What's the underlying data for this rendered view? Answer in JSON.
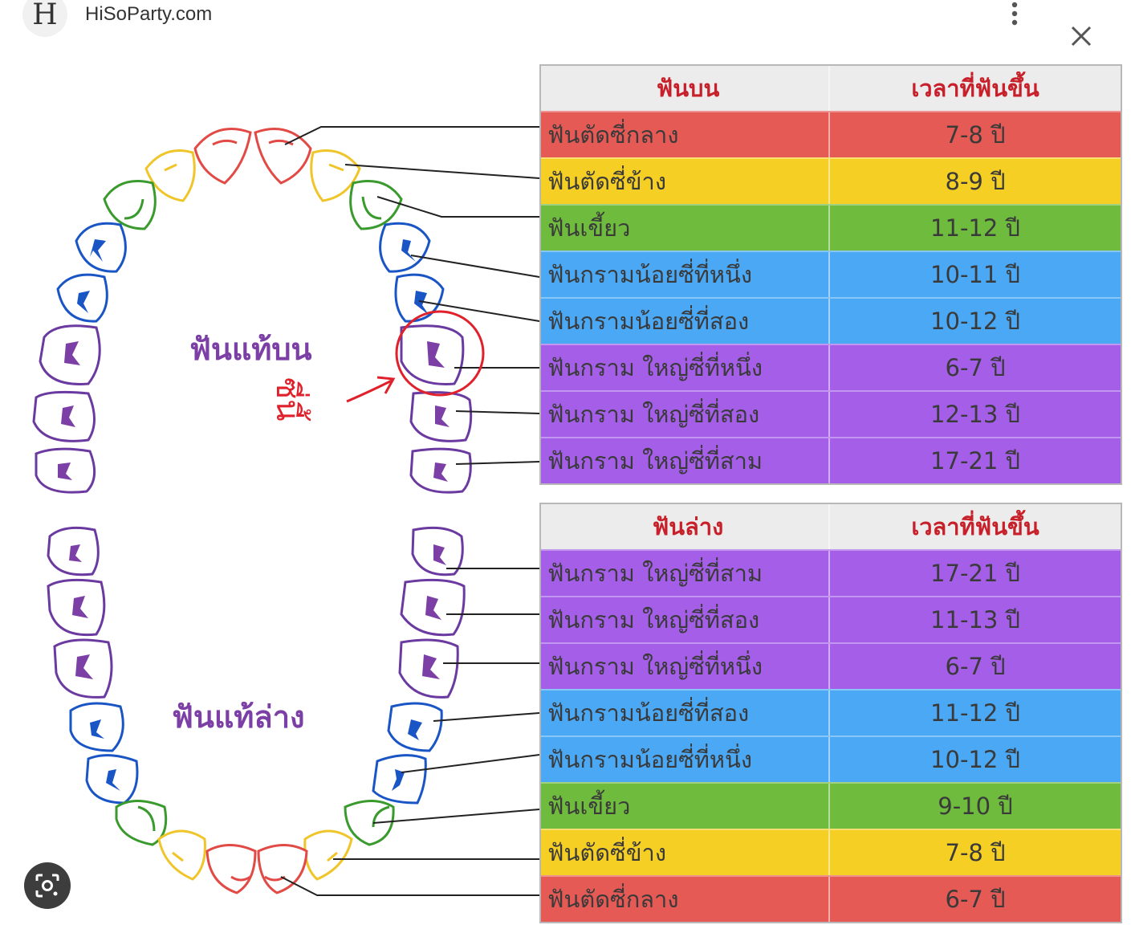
{
  "header": {
    "logo_letter": "H",
    "site_name": "HiSoParty.com"
  },
  "diagram": {
    "upper_label": "ฟันแท้บน",
    "lower_label": "ฟันแท้ล่าง",
    "annotation": "ซี่นี้",
    "colors": {
      "central_incisor": "#e65a55",
      "lateral_incisor": "#f6cf24",
      "canine": "#6fbb3d",
      "premolar": "#4aa8f5",
      "molar": "#a45ee8",
      "header": "#ececec",
      "header_text": "#c8202a",
      "annotation": "#e0202a"
    }
  },
  "upper_table": {
    "headers": [
      "ฟันบน",
      "เวลาที่ฟันขึ้น"
    ],
    "rows": [
      {
        "tooth": "ฟันตัดซี่กลาง",
        "age": "7-8 ปี",
        "color": "#e65a55"
      },
      {
        "tooth": "ฟันตัดซี่ข้าง",
        "age": "8-9 ปี",
        "color": "#f6cf24"
      },
      {
        "tooth": "ฟันเขี้ยว",
        "age": "11-12 ปี",
        "color": "#6fbb3d"
      },
      {
        "tooth": "ฟันกรามน้อยซี่ที่หนึ่ง",
        "age": "10-11 ปี",
        "color": "#4aa8f5"
      },
      {
        "tooth": "ฟันกรามน้อยซี่ที่สอง",
        "age": "10-12 ปี",
        "color": "#4aa8f5"
      },
      {
        "tooth": "ฟันกราม ใหญ่ซี่ที่หนึ่ง",
        "age": "6-7 ปี",
        "color": "#a45ee8"
      },
      {
        "tooth": "ฟันกราม ใหญ่ซี่ที่สอง",
        "age": "12-13 ปี",
        "color": "#a45ee8"
      },
      {
        "tooth": "ฟันกราม ใหญ่ซี่ที่สาม",
        "age": "17-21  ปี",
        "color": "#a45ee8"
      }
    ]
  },
  "lower_table": {
    "headers": [
      "ฟันล่าง",
      "เวลาที่ฟันขึ้น"
    ],
    "rows": [
      {
        "tooth": "ฟันกราม ใหญ่ซี่ที่สาม",
        "age": "17-21 ปี",
        "color": "#a45ee8"
      },
      {
        "tooth": "ฟันกราม ใหญ่ซี่ที่สอง",
        "age": "11-13 ปี",
        "color": "#a45ee8"
      },
      {
        "tooth": "ฟันกราม ใหญ่ซี่ที่หนึ่ง",
        "age": "6-7  ปี",
        "color": "#a45ee8"
      },
      {
        "tooth": "ฟันกรามน้อยซี่ที่สอง",
        "age": "11-12 ปี",
        "color": "#4aa8f5"
      },
      {
        "tooth": "ฟันกรามน้อยซี่ที่หนึ่ง",
        "age": "10-12 ปี",
        "color": "#4aa8f5"
      },
      {
        "tooth": "ฟันเขี้ยว",
        "age": "9-10 ปี",
        "color": "#6fbb3d"
      },
      {
        "tooth": "ฟันตัดซี่ข้าง",
        "age": "7-8 ปี",
        "color": "#f6cf24"
      },
      {
        "tooth": "ฟันตัดซี่กลาง",
        "age": "6-7 ปี",
        "color": "#e65a55"
      }
    ]
  },
  "icons": {
    "more": "more-vertical-icon",
    "close": "close-icon",
    "lens": "camera-search-icon"
  }
}
